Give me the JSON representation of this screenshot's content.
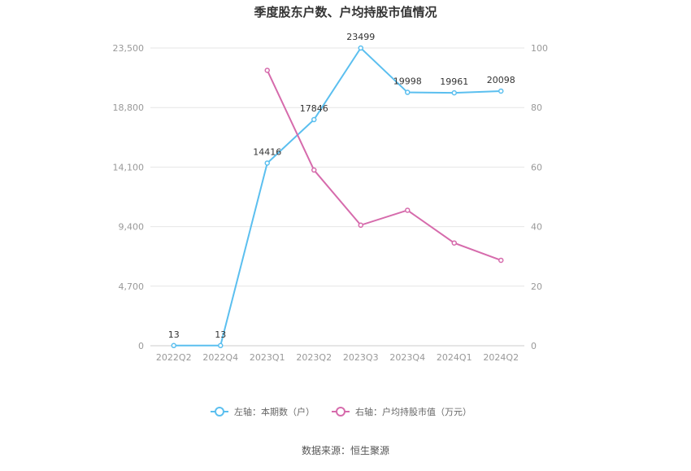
{
  "chart_data": {
    "type": "line",
    "title": "季度股东户数、户均持股市值情况",
    "categories": [
      "2022Q2",
      "2022Q4",
      "2023Q1",
      "2023Q2",
      "2023Q3",
      "2023Q4",
      "2024Q1",
      "2024Q2"
    ],
    "left_axis": {
      "ticks": [
        "23,500",
        "18,800",
        "14,100",
        "9,400",
        "4,700",
        "0"
      ],
      "ylim": [
        0,
        23500
      ]
    },
    "right_axis": {
      "ticks": [
        "100",
        "80",
        "60",
        "40",
        "20",
        "0"
      ],
      "ylim": [
        0,
        100
      ]
    },
    "series": [
      {
        "name": "左轴：本期数（户）",
        "axis": "left",
        "color": "#5bbfef",
        "values": [
          13,
          13,
          14416,
          17846,
          23499,
          19998,
          19961,
          20098
        ],
        "labels": [
          "13",
          "13",
          "14416",
          "17846",
          "23499",
          "19998",
          "19961",
          "20098"
        ]
      },
      {
        "name": "右轴：户均持股市值（万元）",
        "axis": "right",
        "color": "#d66bac",
        "values": [
          null,
          null,
          92.5,
          59.0,
          40.5,
          45.5,
          34.5,
          28.7
        ]
      }
    ],
    "grid": true,
    "legend_position": "bottom"
  },
  "footer": {
    "source": "数据来源：恒生聚源"
  }
}
